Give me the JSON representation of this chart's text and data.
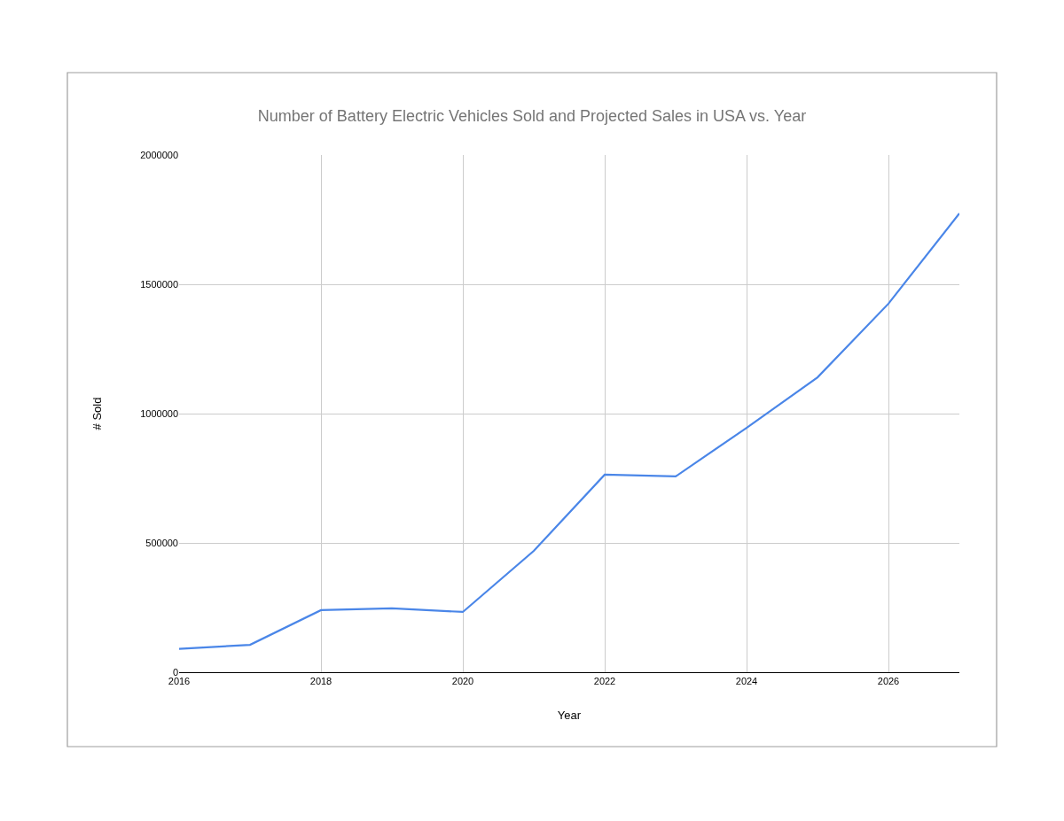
{
  "chart_data": {
    "type": "line",
    "title": "Number of Battery Electric Vehicles Sold and Projected Sales in USA vs. Year",
    "xlabel": "Year",
    "ylabel": "# Sold",
    "x": [
      2016,
      2017,
      2018,
      2019,
      2020,
      2021,
      2022,
      2023,
      2024,
      2025,
      2026,
      2027
    ],
    "series": [
      {
        "color": "#4a86e8",
        "values": [
          90000,
          106000,
          240000,
          247000,
          233000,
          469000,
          764000,
          757000,
          945000,
          1140000,
          1425000,
          1774000
        ]
      }
    ],
    "xlim": [
      2016,
      2027
    ],
    "xticks": [
      2016,
      2018,
      2020,
      2022,
      2024,
      2026
    ],
    "ylim": [
      0,
      2000000
    ],
    "yticks": [
      0,
      500000,
      1000000,
      1500000,
      2000000
    ],
    "grid": true,
    "marker": "none",
    "line_style": "solid"
  }
}
